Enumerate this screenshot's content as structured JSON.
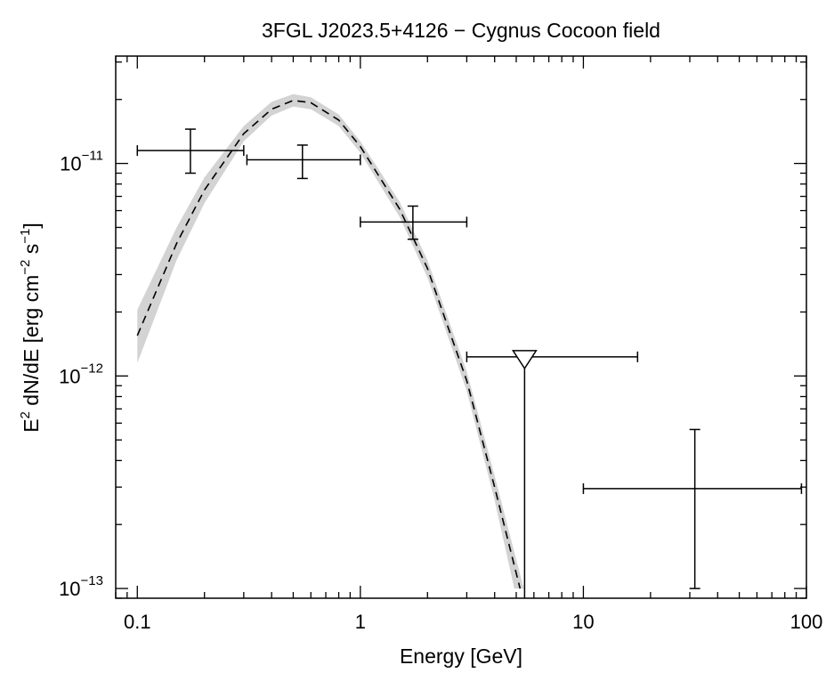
{
  "chart_data": {
    "type": "scatter",
    "title": "3FGL J2023.5+4126 − Cygnus Cocoon field",
    "xlabel": "Energy [GeV]",
    "ylabel_parts": {
      "e": "E",
      "e_exp": "2",
      "mid": " dN/dE [erg cm",
      "cm_exp": "−2",
      "s": " s",
      "s_exp": "−1",
      "end": "]"
    },
    "xscale": "log",
    "yscale": "log",
    "xlim": [
      0.08,
      100
    ],
    "ylim": [
      9e-14,
      3.2e-11
    ],
    "grid": false,
    "x_ticks": [
      {
        "value": 0.1,
        "label": "0.1"
      },
      {
        "value": 1,
        "label": "1"
      },
      {
        "value": 10,
        "label": "10"
      },
      {
        "value": 100,
        "label": "100"
      }
    ],
    "y_ticks": [
      {
        "value": 1e-13,
        "base": "10",
        "exp": "−13"
      },
      {
        "value": 1e-12,
        "base": "10",
        "exp": "−12"
      },
      {
        "value": 1e-11,
        "base": "10",
        "exp": "−11"
      }
    ],
    "points": [
      {
        "x": 0.173,
        "y": 1.15e-11,
        "xerr": [
          0.1,
          0.3
        ],
        "yerr": [
          9e-12,
          1.45e-11
        ]
      },
      {
        "x": 0.55,
        "y": 1.04e-11,
        "xerr": [
          0.31,
          1.0
        ],
        "yerr": [
          8.5e-12,
          1.22e-11
        ]
      },
      {
        "x": 1.72,
        "y": 5.3e-12,
        "xerr": [
          1.0,
          3.0
        ],
        "yerr": [
          4.4e-12,
          6.3e-12
        ]
      },
      {
        "x": 31.6,
        "y": 2.95e-13,
        "xerr": [
          10.0,
          95.0
        ],
        "yerr": [
          1e-13,
          5.6e-13
        ]
      }
    ],
    "upper_limits": [
      {
        "x": 5.45,
        "y": 1.23e-12,
        "xerr": [
          3.0,
          17.5
        ]
      }
    ],
    "model": {
      "style": "dashed",
      "color": "#000000",
      "band_color": "#d3d3d3",
      "curve": [
        {
          "x": 0.1,
          "y": 1.55e-12
        },
        {
          "x": 0.15,
          "y": 4.2e-12
        },
        {
          "x": 0.2,
          "y": 7.5e-12
        },
        {
          "x": 0.3,
          "y": 1.38e-11
        },
        {
          "x": 0.4,
          "y": 1.8e-11
        },
        {
          "x": 0.5,
          "y": 1.98e-11
        },
        {
          "x": 0.6,
          "y": 1.93e-11
        },
        {
          "x": 0.8,
          "y": 1.6e-11
        },
        {
          "x": 1.0,
          "y": 1.2e-11
        },
        {
          "x": 1.5,
          "y": 6.1e-12
        },
        {
          "x": 2.0,
          "y": 3.2e-12
        },
        {
          "x": 3.0,
          "y": 9.5e-13
        },
        {
          "x": 4.0,
          "y": 3e-13
        },
        {
          "x": 5.2,
          "y": 1e-13
        }
      ],
      "band_upper": [
        {
          "x": 0.1,
          "y": 2.05e-12
        },
        {
          "x": 0.15,
          "y": 5e-12
        },
        {
          "x": 0.2,
          "y": 8.6e-12
        },
        {
          "x": 0.3,
          "y": 1.5e-11
        },
        {
          "x": 0.4,
          "y": 1.95e-11
        },
        {
          "x": 0.5,
          "y": 2.12e-11
        },
        {
          "x": 0.6,
          "y": 2.05e-11
        },
        {
          "x": 0.8,
          "y": 1.7e-11
        },
        {
          "x": 1.0,
          "y": 1.27e-11
        },
        {
          "x": 1.5,
          "y": 6.6e-12
        },
        {
          "x": 2.0,
          "y": 3.5e-12
        },
        {
          "x": 3.0,
          "y": 1.05e-12
        },
        {
          "x": 4.0,
          "y": 3.4e-13
        },
        {
          "x": 5.4,
          "y": 1e-13
        }
      ],
      "band_lower": [
        {
          "x": 0.1,
          "y": 1.15e-12
        },
        {
          "x": 0.15,
          "y": 3.5e-12
        },
        {
          "x": 0.2,
          "y": 6.5e-12
        },
        {
          "x": 0.3,
          "y": 1.27e-11
        },
        {
          "x": 0.4,
          "y": 1.68e-11
        },
        {
          "x": 0.5,
          "y": 1.85e-11
        },
        {
          "x": 0.6,
          "y": 1.8e-11
        },
        {
          "x": 0.8,
          "y": 1.5e-11
        },
        {
          "x": 1.0,
          "y": 1.12e-11
        },
        {
          "x": 1.5,
          "y": 5.6e-12
        },
        {
          "x": 2.0,
          "y": 2.9e-12
        },
        {
          "x": 3.0,
          "y": 8.5e-13
        },
        {
          "x": 4.0,
          "y": 2.6e-13
        },
        {
          "x": 4.9,
          "y": 1e-13
        }
      ]
    }
  }
}
